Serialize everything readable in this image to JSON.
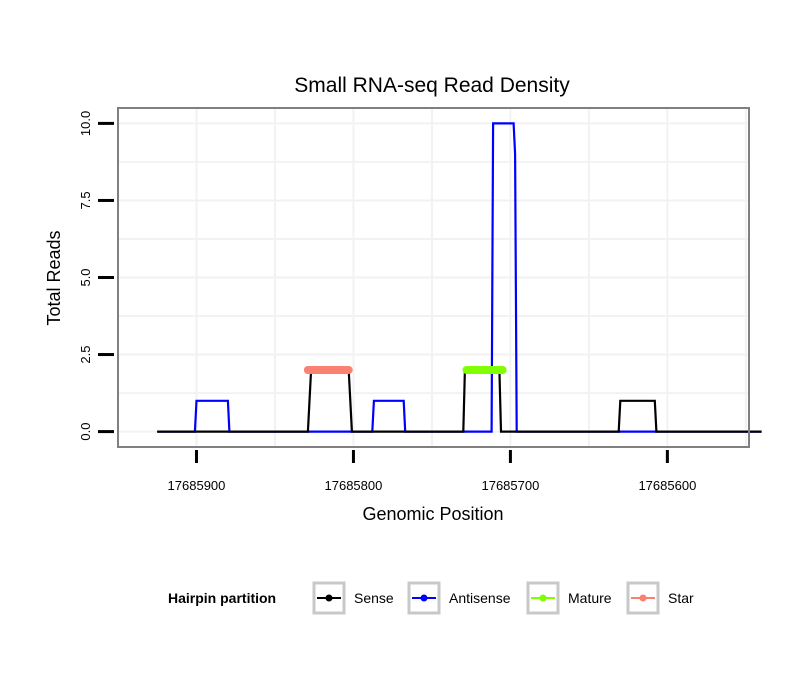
{
  "chart_data": {
    "type": "line",
    "title": "Small RNA-seq Read Density",
    "xlabel": "Genomic Position",
    "ylabel": "Total Reads",
    "xlim": [
      17685950,
      17685548
    ],
    "ylim": [
      -0.5,
      10.5
    ],
    "x_reversed": true,
    "grid": true,
    "x_ticks": [
      17685900,
      17685800,
      17685700,
      17685600
    ],
    "x_tick_labels": [
      "17685900",
      "17685800",
      "17685700",
      "17685600"
    ],
    "y_ticks": [
      0,
      2.5,
      5,
      7.5,
      10
    ],
    "y_tick_labels": [
      "0.0",
      "2.5",
      "5.0",
      "7.5",
      "10.0"
    ],
    "legend": {
      "title": "Hairpin partition",
      "position": "bottom",
      "entries": [
        "Sense",
        "Antisense",
        "Mature",
        "Star"
      ]
    },
    "series": [
      {
        "name": "Sense",
        "color": "#000000",
        "x": [
          17685925,
          17685829,
          17685827,
          17685803,
          17685801,
          17685730,
          17685729,
          17685718,
          17685717,
          17685707,
          17685706,
          17685631,
          17685630,
          17685608,
          17685607,
          17685540
        ],
        "y": [
          0,
          0,
          2,
          2,
          0,
          0,
          2,
          2,
          2,
          2,
          0,
          0,
          1,
          1,
          0,
          0
        ]
      },
      {
        "name": "Antisense",
        "color": "#0000ff",
        "x": [
          17685925,
          17685901,
          17685900,
          17685880,
          17685879,
          17685788,
          17685787,
          17685768,
          17685767,
          17685712,
          17685711,
          17685698,
          17685697,
          17685696,
          17685540
        ],
        "y": [
          0,
          0,
          1,
          1,
          0,
          0,
          1,
          1,
          0,
          0,
          10,
          10,
          9,
          0,
          0
        ]
      },
      {
        "name": "Mature",
        "color": "#7fff00",
        "x": [
          17685728,
          17685705
        ],
        "y": [
          2,
          2
        ]
      },
      {
        "name": "Star",
        "color": "#fa8072",
        "x": [
          17685829,
          17685803
        ],
        "y": [
          2,
          2
        ]
      }
    ]
  }
}
